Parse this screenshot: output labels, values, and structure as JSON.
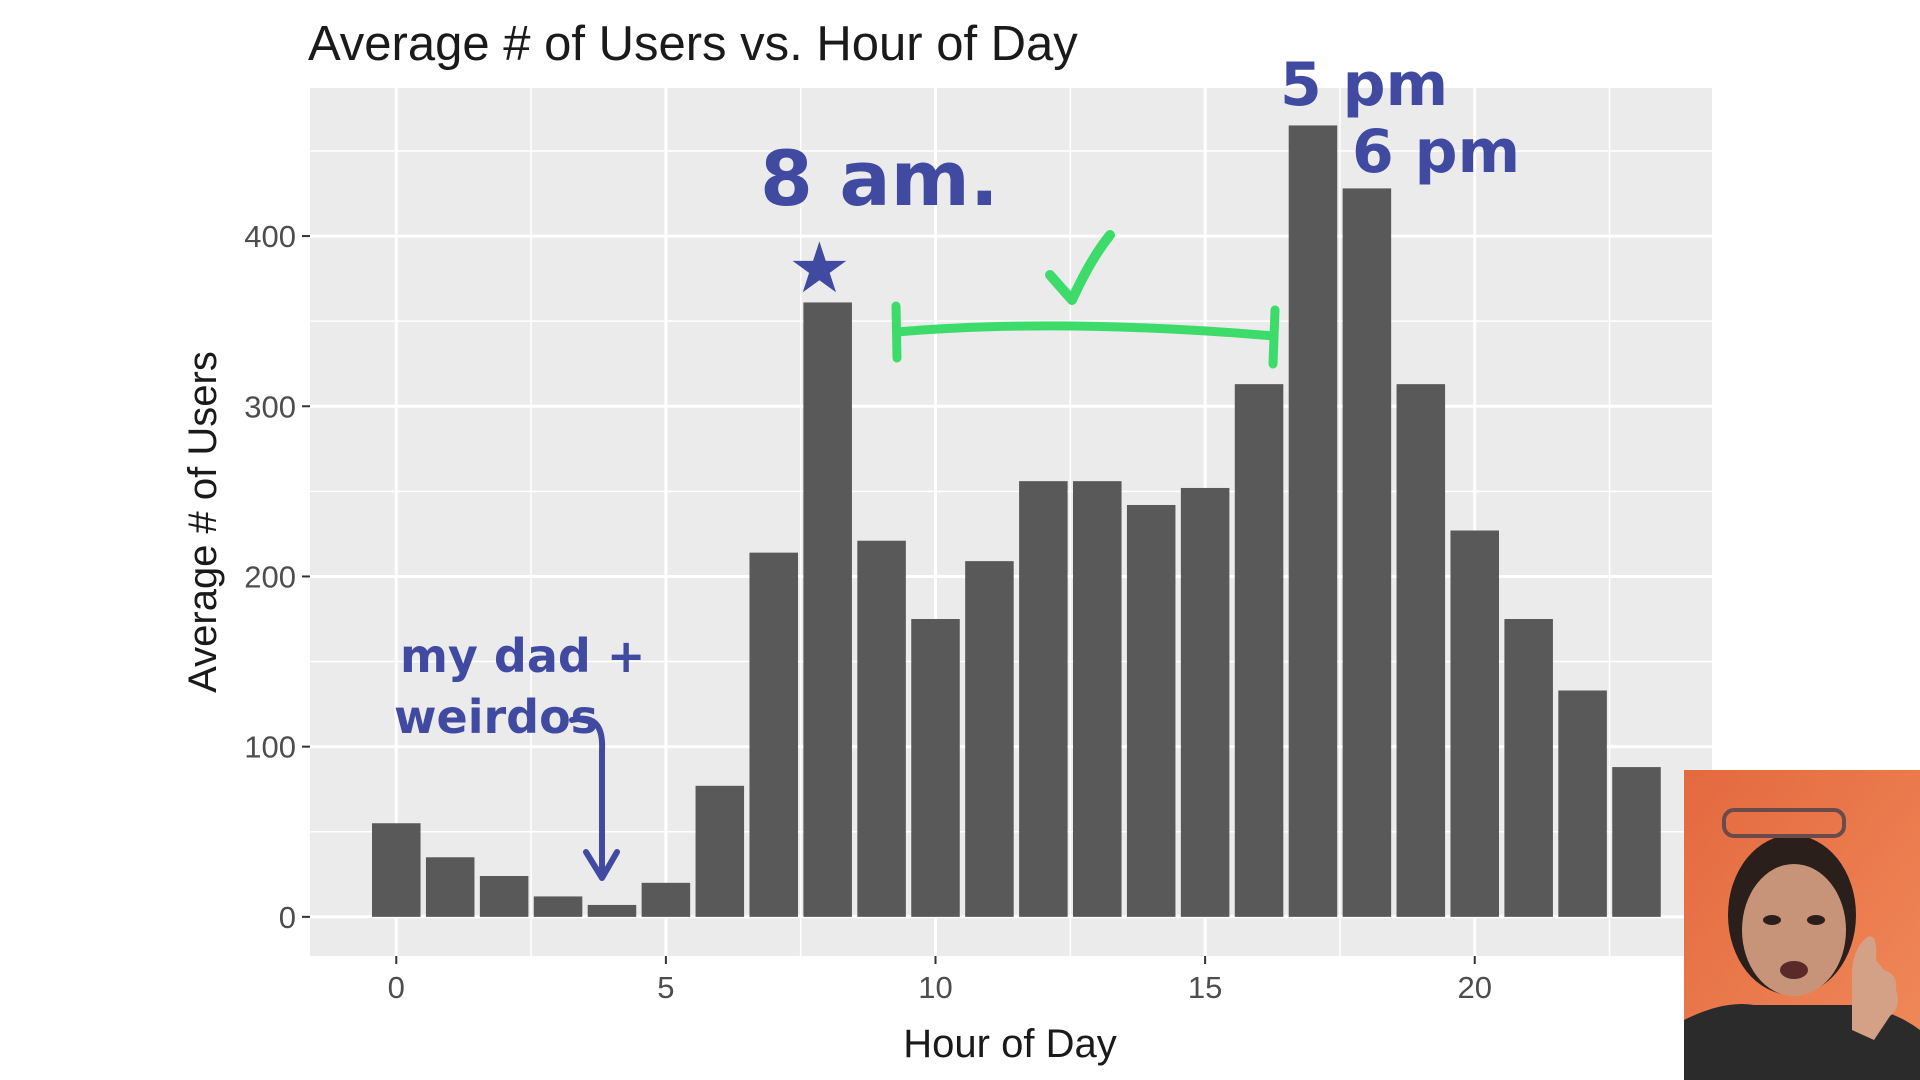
{
  "chart_data": {
    "type": "bar",
    "title": "Average # of Users vs. Hour of Day",
    "xlabel": "Hour of Day",
    "ylabel": "Average # of Users",
    "x": [
      0,
      1,
      2,
      3,
      4,
      5,
      6,
      7,
      8,
      9,
      10,
      11,
      12,
      13,
      14,
      15,
      16,
      17,
      18,
      19,
      20,
      21,
      22,
      23
    ],
    "values": [
      55,
      35,
      24,
      12,
      7,
      20,
      77,
      214,
      361,
      221,
      175,
      209,
      256,
      256,
      242,
      252,
      313,
      465,
      428,
      313,
      227,
      175,
      133,
      88
    ],
    "xlim": [
      -1.6,
      24.4
    ],
    "ylim": [
      -23,
      487
    ],
    "x_ticks": [
      0,
      5,
      10,
      15,
      20
    ],
    "x_tick_labels": [
      "0",
      "5",
      "10",
      "15",
      "20"
    ],
    "y_ticks": [
      0,
      100,
      200,
      300,
      400
    ],
    "y_tick_labels": [
      "0",
      "100",
      "200",
      "300",
      "400"
    ],
    "grid": true,
    "background": "#ebebeb",
    "bar_color": "#595959",
    "grid_color": "#ffffff"
  },
  "annotations": {
    "peak_morning": "8 am.",
    "peak_evening_1": "5 pm",
    "peak_evening_2": "6 pm",
    "night_note_line1": "my dad +",
    "night_note_line2": "weirdos",
    "check_mark": "✓",
    "star": "★",
    "ink_color": "#3f4aa0",
    "highlight_color": "#3ddc6a"
  },
  "webcam": {
    "icon": "person-thumbs-up"
  }
}
